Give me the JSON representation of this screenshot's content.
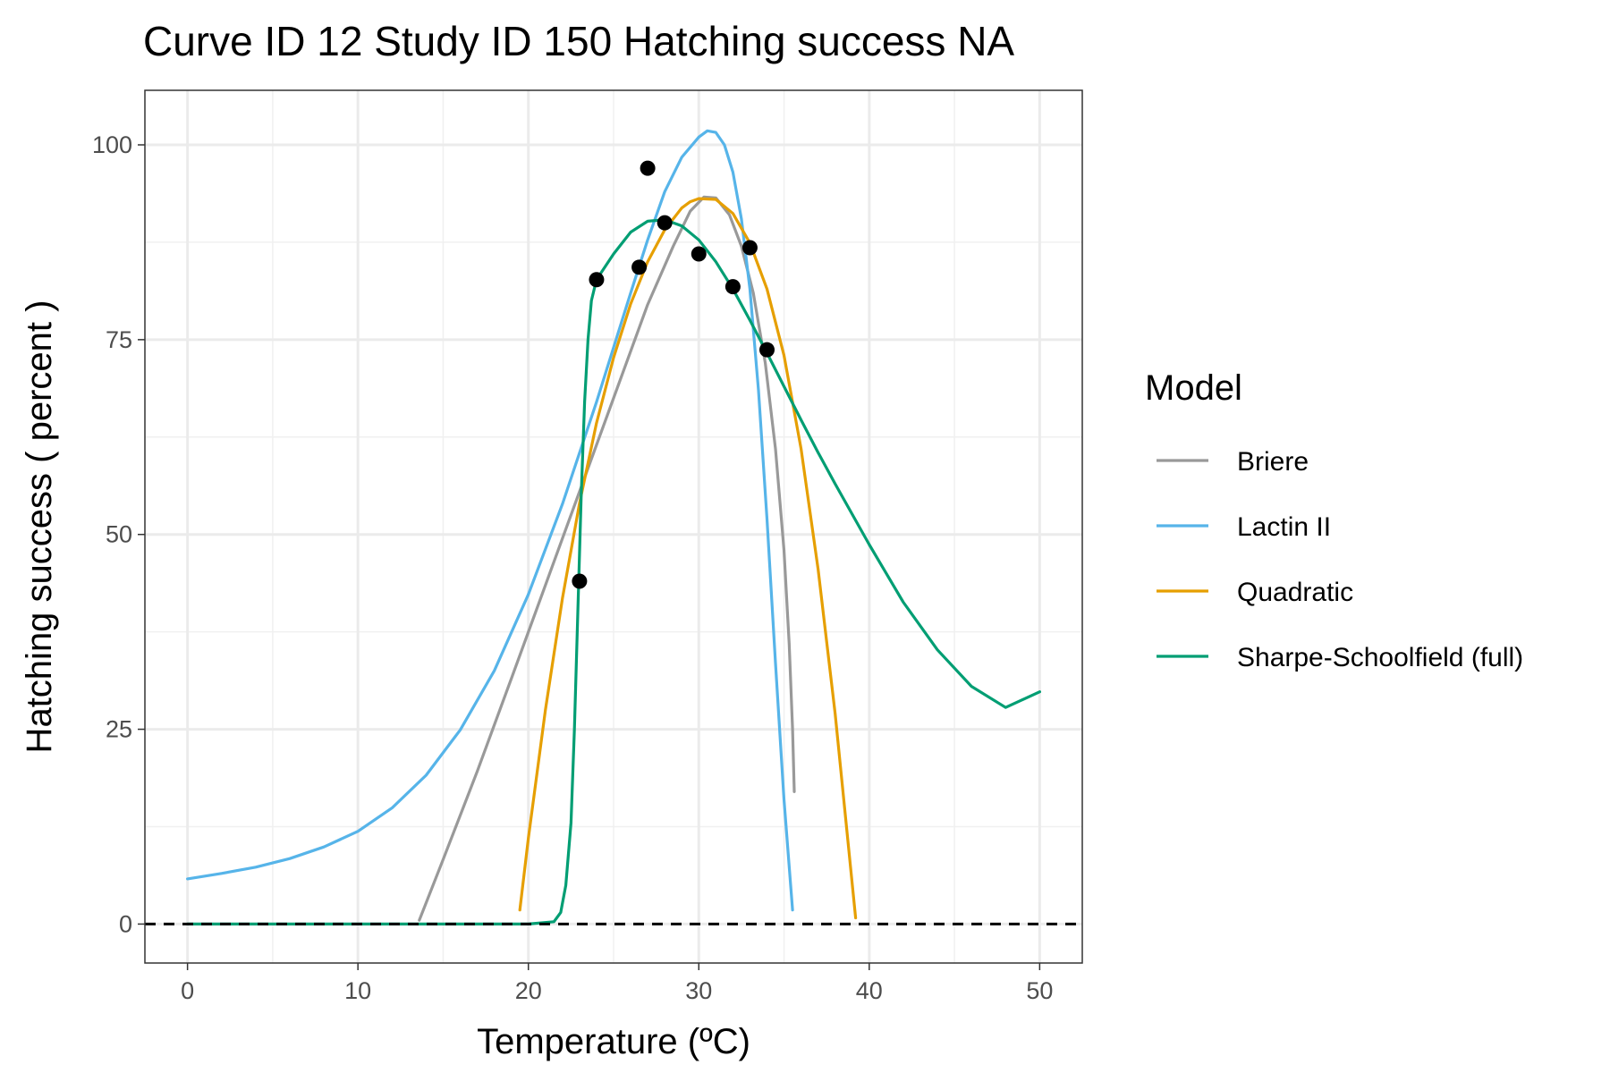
{
  "chart_data": {
    "type": "line",
    "title": "Curve ID 12 Study ID 150 Hatching success NA",
    "xlabel": "Temperature (ºC)",
    "ylabel": "Hatching success ( percent )",
    "xlim": [
      -2.5,
      52.5
    ],
    "ylim": [
      -5,
      107
    ],
    "x_ticks": [
      0,
      10,
      20,
      30,
      40,
      50
    ],
    "y_ticks": [
      0,
      25,
      50,
      75,
      100
    ],
    "grid": true,
    "reference_line": {
      "y": 0,
      "style": "dashed",
      "color": "#000000"
    },
    "legend": {
      "title": "Model",
      "position": "right"
    },
    "points": [
      {
        "x": 23,
        "y": 44
      },
      {
        "x": 24,
        "y": 82.7
      },
      {
        "x": 26.5,
        "y": 84.3
      },
      {
        "x": 27,
        "y": 97
      },
      {
        "x": 28,
        "y": 90
      },
      {
        "x": 30,
        "y": 86
      },
      {
        "x": 32,
        "y": 81.8
      },
      {
        "x": 33,
        "y": 86.8
      },
      {
        "x": 34,
        "y": 73.7
      }
    ],
    "series": [
      {
        "name": "Briere",
        "color": "#999999",
        "x": [
          13.6,
          15,
          17,
          19,
          21,
          23,
          25,
          27,
          28.5,
          29.5,
          30.3,
          31,
          31.8,
          32.5,
          33.2,
          33.9,
          34.5,
          35,
          35.3,
          35.5,
          35.6
        ],
        "y": [
          0.5,
          8.3,
          19.6,
          31.5,
          43.5,
          55.5,
          67.5,
          79.5,
          87,
          91.5,
          93.3,
          93.2,
          91,
          87,
          81,
          72,
          61,
          48,
          36,
          25,
          17
        ]
      },
      {
        "name": "Lactin II",
        "color": "#56B4E9",
        "x": [
          0,
          2,
          4,
          6,
          8,
          10,
          12,
          14,
          16,
          18,
          20,
          22,
          24,
          26,
          27,
          28,
          29,
          30,
          30.5,
          31,
          31.5,
          32,
          32.5,
          33,
          33.5,
          34,
          34.5,
          35,
          35.5
        ],
        "y": [
          5.8,
          6.5,
          7.3,
          8.4,
          9.9,
          11.9,
          14.9,
          19.1,
          24.9,
          32.5,
          42.3,
          53.9,
          67,
          81,
          87.8,
          94,
          98.4,
          101,
          101.8,
          101.6,
          100,
          96.5,
          90.5,
          81.5,
          68.5,
          52,
          33.5,
          16,
          1.8
        ]
      },
      {
        "name": "Quadratic",
        "color": "#E69F00",
        "x": [
          19.5,
          20,
          21,
          22,
          23,
          24,
          25,
          26,
          27,
          28,
          29,
          29.5,
          30,
          31,
          32,
          33,
          34,
          35,
          36,
          37,
          38,
          39.2
        ],
        "y": [
          1.8,
          11,
          27.5,
          41.8,
          54,
          64.3,
          72.7,
          79.6,
          85,
          89.1,
          91.9,
          92.7,
          93.1,
          93,
          91.2,
          87.4,
          81.5,
          73,
          61,
          45.5,
          27,
          0.8
        ]
      },
      {
        "name": "Sharpe-Schoolfield (full)",
        "color": "#009E73",
        "x": [
          0,
          20,
          21.5,
          21.9,
          22.2,
          22.5,
          22.7,
          22.9,
          23.1,
          23.3,
          23.5,
          23.7,
          24,
          25,
          26,
          27,
          28,
          29,
          30,
          31,
          32,
          33,
          34,
          35,
          36,
          37,
          38,
          40,
          42,
          44,
          46,
          48,
          50
        ],
        "y": [
          0,
          0,
          0.3,
          1.5,
          5,
          13,
          25,
          40,
          55,
          67,
          75,
          80,
          82.7,
          86,
          88.8,
          90.2,
          90.4,
          89.6,
          87.8,
          85,
          81.5,
          77.5,
          73.3,
          69,
          64.7,
          60.5,
          56.5,
          48.7,
          41.3,
          35.2,
          30.5,
          27.8,
          29.8
        ]
      }
    ]
  }
}
